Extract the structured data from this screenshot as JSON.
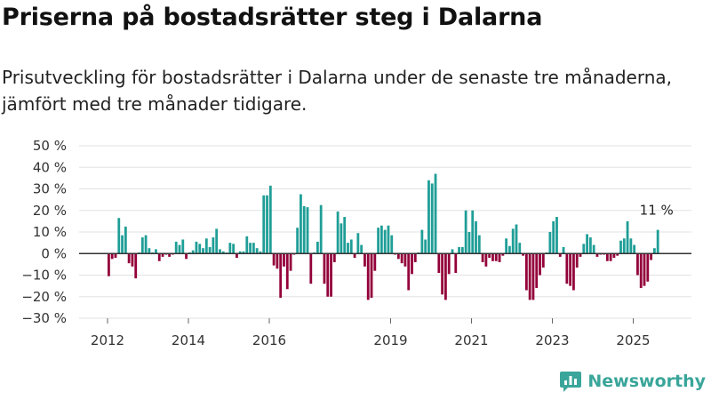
{
  "title": "Priserna på bostadsrätter steg i Dalarna",
  "subtitle": "Prisutveckling för bostadsrätter i Dalarna under de senaste tre månaderna, jämfört med tre månader tidigare.",
  "brand": "Newsworthy",
  "colors": {
    "positive": "#1f9e97",
    "negative": "#93003a",
    "zero_line": "#333333",
    "grid": "#e2e2e2"
  },
  "chart_data": {
    "type": "bar",
    "ylim": [
      -30,
      50
    ],
    "yticks": [
      -30,
      -20,
      -10,
      0,
      10,
      20,
      30,
      40,
      50
    ],
    "ytick_labels": [
      "−30 %",
      "−20 %",
      "−10 %",
      "0 %",
      "10 %",
      "20 %",
      "30 %",
      "40 %",
      "50 %"
    ],
    "xticks": [
      2012,
      2014,
      2016,
      2019,
      2021,
      2023,
      2025
    ],
    "x_start": 2012.0,
    "x_step": 0.0833,
    "unit": "%",
    "annotation": {
      "label": "11 %",
      "value": 11
    },
    "values": [
      -10.5,
      -2.5,
      -2,
      16.5,
      8.5,
      12.5,
      -4.5,
      -6,
      -11.5,
      0.5,
      7.5,
      8.5,
      2.5,
      0.5,
      2,
      -3.5,
      -1.5,
      -0.5,
      -1.5,
      -0.5,
      5.5,
      4,
      6.5,
      -2.5,
      0.5,
      1.5,
      5.5,
      4.5,
      2.5,
      7,
      3,
      7.5,
      11.5,
      2,
      1,
      0.5,
      5,
      4.5,
      -2,
      1,
      1,
      8,
      5,
      5,
      2.5,
      1,
      27,
      27,
      31.5,
      -5.5,
      -7,
      -20.5,
      -6,
      -16.5,
      -8,
      -0.5,
      12,
      27.5,
      22,
      21.5,
      -14,
      0.5,
      5.5,
      22.5,
      -14,
      -20,
      -20,
      -4,
      19.5,
      14,
      17,
      5,
      6.5,
      -2,
      9.5,
      4,
      -6,
      -21.5,
      -20.5,
      -8,
      12,
      13,
      11,
      13,
      8.5,
      -0.5,
      -2.5,
      -4.5,
      -6,
      -17,
      -9.5,
      -4,
      0.5,
      11,
      6.5,
      34,
      32.5,
      37,
      -9,
      -19,
      -21.5,
      -9.5,
      2,
      -9,
      3,
      3,
      20,
      10,
      20,
      15,
      8.5,
      -4,
      -6,
      -2,
      -3.5,
      -3.5,
      -4,
      -1,
      7,
      3.5,
      11.5,
      13.5,
      5,
      -1,
      -17,
      -21.5,
      -21.5,
      -16,
      -10,
      -6.5,
      0.5,
      10,
      15,
      17,
      -1.5,
      3,
      -14,
      -15,
      -17,
      -6.5,
      -1.5,
      4.5,
      9,
      7.5,
      4,
      -1.5,
      -0.5,
      -0.5,
      -3.5,
      -3.5,
      -2,
      -1,
      6,
      7,
      15,
      7,
      4,
      -10,
      -16,
      -15,
      -13,
      -3,
      2.5,
      11
    ]
  }
}
